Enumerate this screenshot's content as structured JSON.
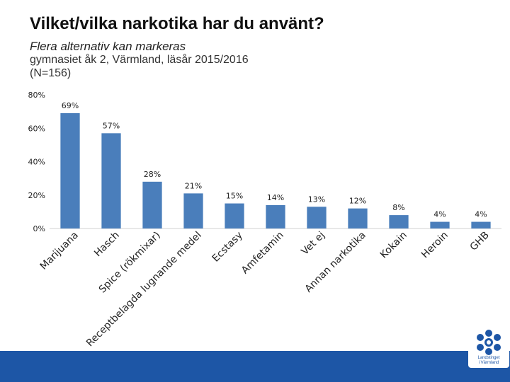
{
  "page": {
    "title": "Vilket/vilka narkotika har du använt?",
    "subtitle": "Flera alternativ kan markeras",
    "description_line1": "gymnasiet åk 2, Värmland, läsår 2015/2016",
    "description_line2": "(N=156)"
  },
  "logo": {
    "line1": "Landstinget",
    "line2": "i Värmland"
  },
  "colors": {
    "bar": "#4a7ebb",
    "footer": "#1d56a6",
    "text": "#111111"
  },
  "chart_data": {
    "type": "bar",
    "title": "Vilket/vilka narkotika har du använt?",
    "xlabel": "",
    "ylabel": "",
    "ylim": [
      0,
      80
    ],
    "yticks": [
      "0%",
      "20%",
      "40%",
      "60%",
      "80%"
    ],
    "grid": false,
    "categories": [
      "Marijuana",
      "Hasch",
      "Spice (rökmixar)",
      "Receptbelagda lugnande medel",
      "Ecstasy",
      "Amfetamin",
      "Vet ej",
      "Annan narkotika",
      "Kokain",
      "Heroin",
      "GHB"
    ],
    "values": [
      69,
      57,
      28,
      21,
      15,
      14,
      13,
      12,
      8,
      4,
      4
    ],
    "value_labels": [
      "69%",
      "57%",
      "28%",
      "21%",
      "15%",
      "14%",
      "13%",
      "12%",
      "8%",
      "4%",
      "4%"
    ]
  }
}
